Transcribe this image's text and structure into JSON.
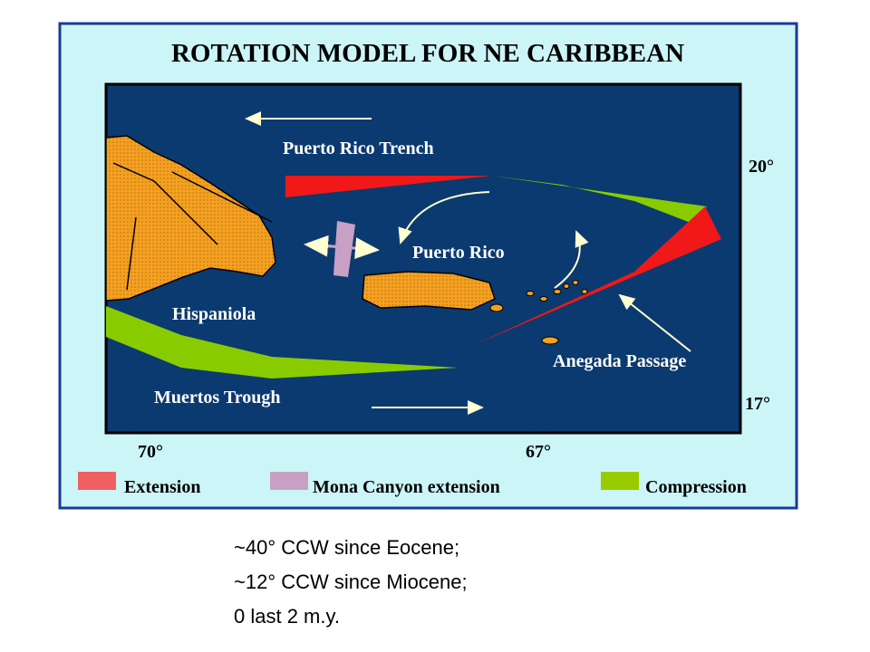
{
  "header": {
    "title": "ROTATION MODEL FOR NE CARIBBEAN"
  },
  "map": {
    "labels": {
      "trench": "Puerto Rico Trench",
      "lat_north": "20°",
      "puerto_rico": "Puerto Rico",
      "hispaniola": "Hispaniola",
      "anegada": "Anegada Passage",
      "muertos": "Muertos Trough",
      "lat_south": "17°",
      "lon_west": "70°",
      "lon_east": "67°"
    }
  },
  "legend": {
    "items": [
      {
        "label": "Extension",
        "color": "#f06060"
      },
      {
        "label": "Mona Canyon extension",
        "color": "#c8a0c4"
      },
      {
        "label": "Compression",
        "color": "#99cc00"
      }
    ]
  },
  "caption": {
    "lines": [
      "~40° CCW since Eocene;",
      "~12° CCW since Miocene;",
      "0 last 2 m.y."
    ]
  }
}
